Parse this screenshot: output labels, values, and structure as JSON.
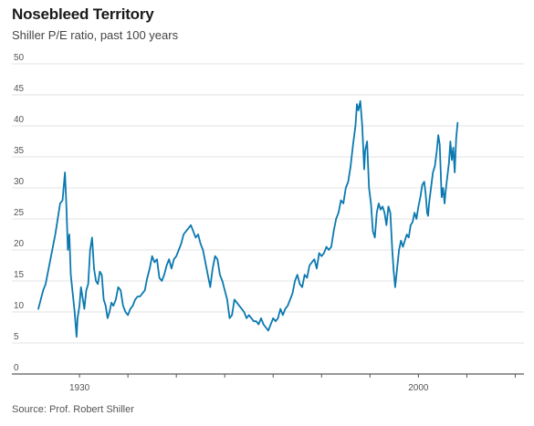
{
  "chart_data": {
    "type": "line",
    "title": "Nosebleed Territory",
    "subtitle": "Shiller P/E ratio, past 100 years",
    "source": "Source: Prof. Robert Shiller",
    "xlabel": "",
    "ylabel": "",
    "ylim": [
      0,
      50
    ],
    "xlim": [
      1921.5,
      2021.8
    ],
    "yticks": [
      "0",
      "5",
      "10",
      "15",
      "20",
      "25",
      "30",
      "35",
      "40",
      "45",
      "50"
    ],
    "xticks": [
      {
        "value": 1930,
        "label": "1930"
      },
      {
        "value": 2000,
        "label": "2000"
      }
    ],
    "grid": "horizontal",
    "line_color": "#0b79b0",
    "series": [
      {
        "values": [
          [
            1921.5,
            10.5
          ],
          [
            1922.0,
            12.0
          ],
          [
            1922.5,
            13.5
          ],
          [
            1923.0,
            14.5
          ],
          [
            1923.5,
            16.5
          ],
          [
            1924.0,
            18.5
          ],
          [
            1924.5,
            20.5
          ],
          [
            1925.0,
            22.5
          ],
          [
            1925.5,
            25.0
          ],
          [
            1926.0,
            27.5
          ],
          [
            1926.5,
            28.0
          ],
          [
            1927.0,
            32.5
          ],
          [
            1927.3,
            27.0
          ],
          [
            1927.6,
            20.0
          ],
          [
            1927.9,
            22.5
          ],
          [
            1928.2,
            16.0
          ],
          [
            1928.6,
            13.0
          ],
          [
            1929.0,
            10.0
          ],
          [
            1929.4,
            6.0
          ],
          [
            1929.6,
            9.0
          ],
          [
            1930.0,
            11.0
          ],
          [
            1930.3,
            14.0
          ],
          [
            1930.7,
            12.0
          ],
          [
            1931.0,
            10.5
          ],
          [
            1931.4,
            13.5
          ],
          [
            1931.8,
            14.5
          ],
          [
            1932.2,
            20.0
          ],
          [
            1932.6,
            22.0
          ],
          [
            1933.0,
            17.0
          ],
          [
            1933.4,
            15.0
          ],
          [
            1933.8,
            14.5
          ],
          [
            1934.2,
            16.5
          ],
          [
            1934.6,
            16.0
          ],
          [
            1935.0,
            12.0
          ],
          [
            1935.4,
            11.0
          ],
          [
            1935.8,
            9.0
          ],
          [
            1936.2,
            10.0
          ],
          [
            1936.6,
            11.5
          ],
          [
            1937.0,
            11.0
          ],
          [
            1937.5,
            12.0
          ],
          [
            1938.0,
            14.0
          ],
          [
            1938.5,
            13.5
          ],
          [
            1939.0,
            11.0
          ],
          [
            1939.5,
            10.0
          ],
          [
            1940.0,
            9.5
          ],
          [
            1940.5,
            10.5
          ],
          [
            1941.0,
            11.0
          ],
          [
            1941.5,
            12.0
          ],
          [
            1942.0,
            12.5
          ],
          [
            1942.5,
            12.5
          ],
          [
            1943.0,
            13.0
          ],
          [
            1943.5,
            13.5
          ],
          [
            1944.0,
            15.5
          ],
          [
            1944.5,
            17.0
          ],
          [
            1945.0,
            19.0
          ],
          [
            1945.5,
            18.0
          ],
          [
            1946.0,
            18.5
          ],
          [
            1946.5,
            15.5
          ],
          [
            1947.0,
            15.0
          ],
          [
            1947.5,
            16.0
          ],
          [
            1948.0,
            17.5
          ],
          [
            1948.5,
            18.5
          ],
          [
            1949.0,
            17.0
          ],
          [
            1949.5,
            18.5
          ],
          [
            1950.0,
            19.0
          ],
          [
            1950.5,
            20.0
          ],
          [
            1951.0,
            21.0
          ],
          [
            1951.5,
            22.5
          ],
          [
            1952.0,
            23.0
          ],
          [
            1952.5,
            23.5
          ],
          [
            1953.0,
            24.0
          ],
          [
            1953.5,
            23.0
          ],
          [
            1954.0,
            22.0
          ],
          [
            1954.5,
            22.5
          ],
          [
            1955.0,
            21.0
          ],
          [
            1955.5,
            20.0
          ],
          [
            1956.0,
            18.0
          ],
          [
            1956.5,
            16.0
          ],
          [
            1957.0,
            14.0
          ],
          [
            1957.5,
            17.0
          ],
          [
            1958.0,
            19.0
          ],
          [
            1958.5,
            18.5
          ],
          [
            1959.0,
            16.0
          ],
          [
            1959.5,
            15.0
          ],
          [
            1960.0,
            13.5
          ],
          [
            1960.5,
            12.0
          ],
          [
            1961.0,
            9.0
          ],
          [
            1961.5,
            9.5
          ],
          [
            1962.0,
            12.0
          ],
          [
            1962.5,
            11.5
          ],
          [
            1963.0,
            11.0
          ],
          [
            1963.5,
            10.5
          ],
          [
            1964.0,
            10.0
          ],
          [
            1964.5,
            9.0
          ],
          [
            1965.0,
            9.5
          ],
          [
            1965.5,
            9.0
          ],
          [
            1966.0,
            8.5
          ],
          [
            1966.5,
            8.5
          ],
          [
            1967.0,
            8.0
          ],
          [
            1967.5,
            9.0
          ],
          [
            1968.0,
            8.0
          ],
          [
            1968.5,
            7.5
          ],
          [
            1969.0,
            7.0
          ],
          [
            1969.5,
            8.0
          ],
          [
            1970.0,
            9.0
          ],
          [
            1970.5,
            8.5
          ],
          [
            1971.0,
            9.0
          ],
          [
            1971.5,
            10.5
          ],
          [
            1972.0,
            9.5
          ],
          [
            1972.5,
            10.5
          ],
          [
            1973.0,
            11.0
          ],
          [
            1973.5,
            12.0
          ],
          [
            1974.0,
            13.0
          ],
          [
            1974.5,
            15.0
          ],
          [
            1975.0,
            16.0
          ],
          [
            1975.5,
            14.5
          ],
          [
            1976.0,
            14.0
          ],
          [
            1976.5,
            16.0
          ],
          [
            1977.0,
            15.5
          ],
          [
            1977.5,
            17.5
          ],
          [
            1978.0,
            18.0
          ],
          [
            1978.5,
            18.5
          ],
          [
            1979.0,
            17.0
          ],
          [
            1979.5,
            19.5
          ],
          [
            1980.0,
            19.0
          ],
          [
            1980.5,
            19.5
          ],
          [
            1981.0,
            20.5
          ],
          [
            1981.5,
            20.0
          ],
          [
            1982.0,
            20.5
          ],
          [
            1982.5,
            23.0
          ],
          [
            1983.0,
            25.0
          ],
          [
            1983.5,
            26.0
          ],
          [
            1984.0,
            28.0
          ],
          [
            1984.5,
            27.5
          ],
          [
            1985.0,
            30.0
          ],
          [
            1985.5,
            31.0
          ],
          [
            1986.0,
            33.5
          ],
          [
            1986.5,
            37.0
          ],
          [
            1987.0,
            40.0
          ],
          [
            1987.3,
            43.5
          ],
          [
            1987.6,
            42.5
          ],
          [
            1988.0,
            44.0
          ],
          [
            1988.4,
            40.0
          ],
          [
            1988.8,
            33.0
          ],
          [
            1989.0,
            36.0
          ],
          [
            1989.4,
            37.5
          ],
          [
            1989.8,
            30.0
          ],
          [
            1990.2,
            27.5
          ],
          [
            1990.6,
            23.0
          ],
          [
            1991.0,
            22.0
          ],
          [
            1991.4,
            26.0
          ],
          [
            1991.8,
            27.5
          ],
          [
            1992.2,
            26.5
          ],
          [
            1992.6,
            27.0
          ],
          [
            1993.0,
            26.0
          ],
          [
            1993.4,
            24.0
          ],
          [
            1993.8,
            27.0
          ],
          [
            1994.2,
            26.0
          ],
          [
            1994.6,
            20.0
          ],
          [
            1994.9,
            16.5
          ],
          [
            1995.2,
            14.0
          ],
          [
            1995.6,
            17.0
          ],
          [
            1996.0,
            20.0
          ],
          [
            1996.4,
            21.5
          ],
          [
            1996.8,
            20.5
          ],
          [
            1997.2,
            21.5
          ],
          [
            1997.6,
            22.5
          ],
          [
            1998.0,
            22.0
          ],
          [
            1998.4,
            24.0
          ],
          [
            1998.8,
            24.5
          ],
          [
            1999.2,
            26.0
          ],
          [
            1999.6,
            25.0
          ],
          [
            2000.0,
            27.0
          ],
          [
            2000.4,
            28.5
          ],
          [
            2000.8,
            30.5
          ],
          [
            2001.2,
            31.0
          ],
          [
            2001.5,
            29.0
          ],
          [
            2001.8,
            26.0
          ],
          [
            2002.0,
            25.5
          ],
          [
            2002.2,
            27.5
          ],
          [
            2002.6,
            30.0
          ],
          [
            2003.0,
            32.5
          ],
          [
            2003.4,
            33.5
          ],
          [
            2003.8,
            36.0
          ],
          [
            2004.1,
            38.5
          ],
          [
            2004.4,
            37.0
          ],
          [
            2004.8,
            28.5
          ],
          [
            2005.1,
            30.0
          ],
          [
            2005.4,
            27.5
          ],
          [
            2005.7,
            30.0
          ],
          [
            2006.0,
            32.0
          ],
          [
            2006.3,
            34.0
          ],
          [
            2006.6,
            37.5
          ],
          [
            2006.9,
            34.5
          ],
          [
            2007.2,
            36.5
          ],
          [
            2007.5,
            32.5
          ],
          [
            2007.8,
            38.0
          ],
          [
            2008.1,
            40.5
          ]
        ]
      }
    ]
  }
}
